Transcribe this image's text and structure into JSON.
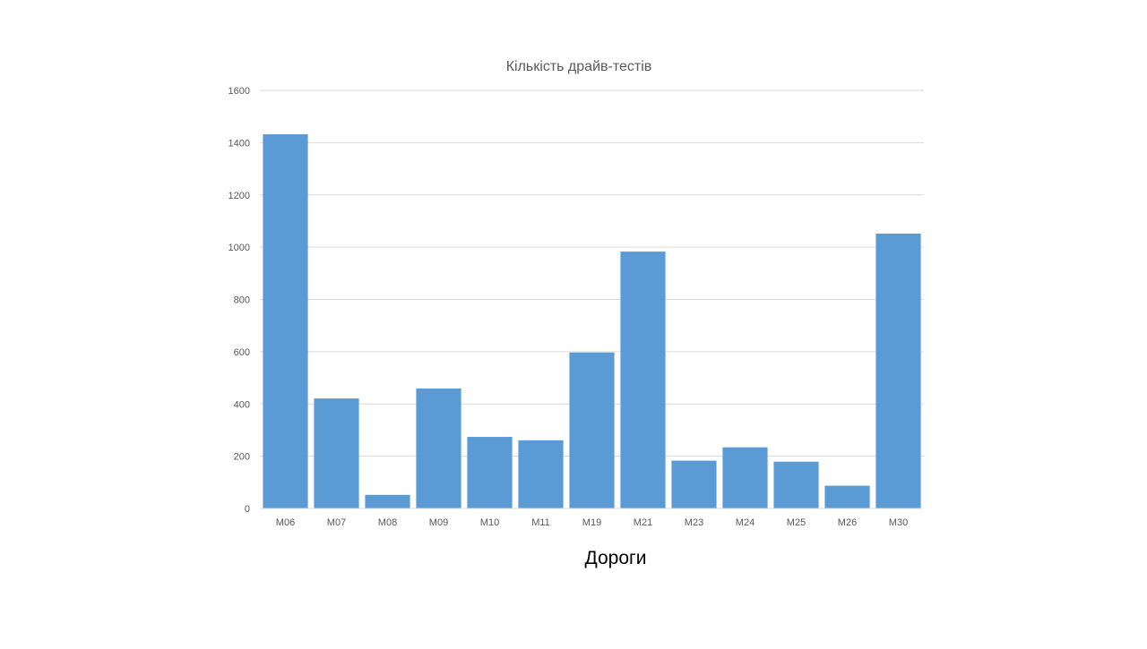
{
  "chart_data": {
    "type": "bar",
    "title": "Кількість драйв-тестів",
    "xlabel": "Дороги",
    "ylabel": "",
    "categories": [
      "M06",
      "M07",
      "M08",
      "M09",
      "M10",
      "M11",
      "M19",
      "M21",
      "M23",
      "M24",
      "M25",
      "M26",
      "M30"
    ],
    "series": [
      {
        "values": [
          1432,
          421,
          52,
          459,
          274,
          261,
          597,
          983,
          183,
          234,
          179,
          87,
          1052
        ]
      }
    ],
    "yticks": [
      "0",
      "200",
      "400",
      "600",
      "800",
      "1000",
      "1200",
      "1400",
      "1600"
    ],
    "ylim": [
      0,
      1600
    ],
    "grid": true,
    "legend": "none",
    "colors": {
      "bar": "#5b9bd5",
      "grid": "#d9d9d9",
      "title": "#595959",
      "tick": "#595959",
      "xlabel": "#000000"
    }
  }
}
